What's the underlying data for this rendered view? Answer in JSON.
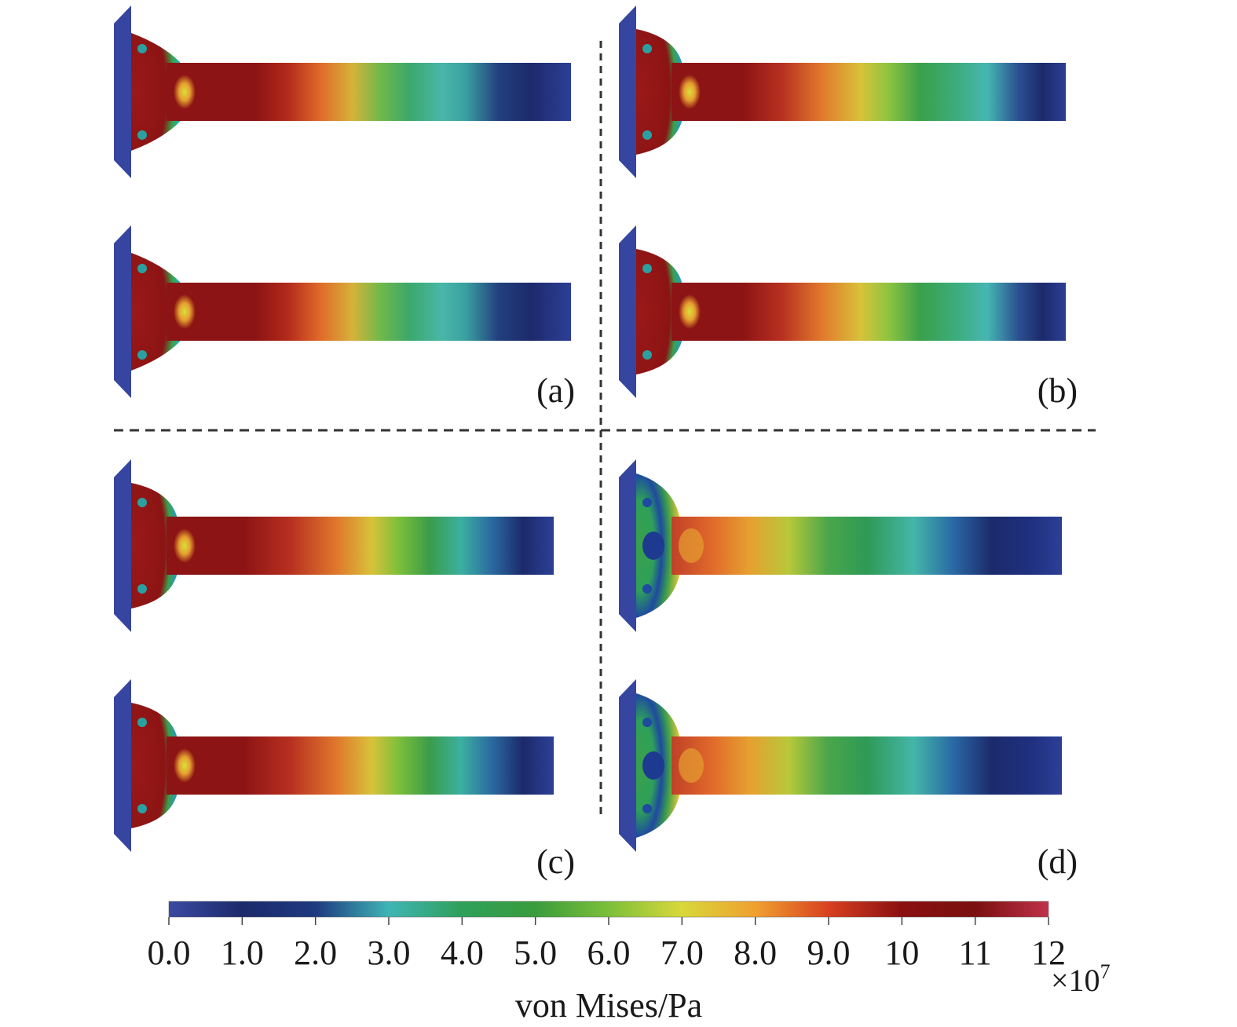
{
  "panels": [
    {
      "label": "(a)",
      "head": "small",
      "variant": "a"
    },
    {
      "label": "(b)",
      "head": "round",
      "variant": "b"
    },
    {
      "label": "(c)",
      "head": "round",
      "variant": "c"
    },
    {
      "label": "(d)",
      "head": "large",
      "variant": "d"
    }
  ],
  "colorbar": {
    "label": "von Mises/Pa",
    "exponent_prefix": "×10",
    "exponent": "7",
    "ticks": [
      "0.0",
      "1.0",
      "2.0",
      "3.0",
      "4.0",
      "5.0",
      "6.0",
      "7.0",
      "8.0",
      "9.0",
      "10",
      "11",
      "12"
    ],
    "min": 0,
    "max": 12,
    "stops": [
      "#3b4aa0",
      "#1c2a6b",
      "#1e3a80",
      "#3fb5b5",
      "#2ea05a",
      "#3a9c3c",
      "#7cbf3a",
      "#d8d83a",
      "#f0a030",
      "#d84020",
      "#8a1010",
      "#7a1010",
      "#c0304a"
    ]
  },
  "colors": {
    "plate": "#3646a0",
    "divider": "#333333",
    "hot": "#8c1414",
    "cold": "#1f2f78"
  }
}
